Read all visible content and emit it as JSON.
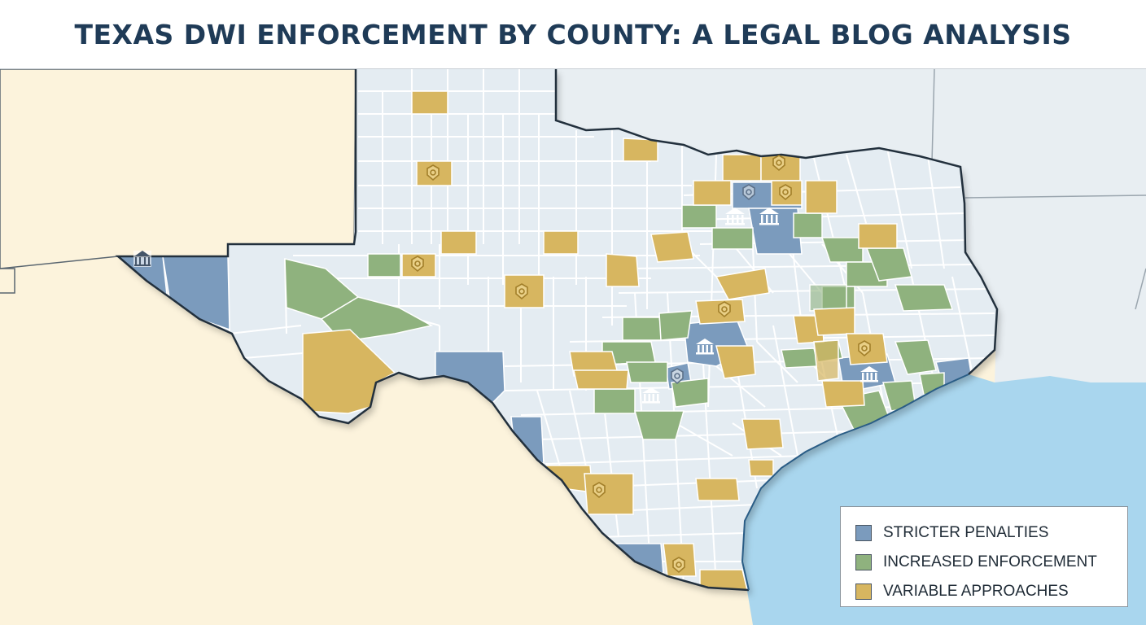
{
  "title": "TEXAS DWI ENFORCEMENT BY COUNTY: A LEGAL BLOG ANALYSIS",
  "colors": {
    "background_land": "#fcf3dc",
    "neighbor_land": "#e8eef2",
    "gulf_water": "#a9d6ee",
    "county_default": "#e4ecf2",
    "county_border": "#ffffff",
    "state_outline": "#22303d",
    "stricter": "#7b9bbd",
    "increased": "#8fb27e",
    "variable": "#d7b660"
  },
  "legend": {
    "items": [
      {
        "label": "STRICTER PENALTIES",
        "color": "#7b9bbd"
      },
      {
        "label": "INCREASED ENFORCEMENT",
        "color": "#8fb27e"
      },
      {
        "label": "VARIABLE APPROACHES",
        "color": "#d7b660"
      }
    ]
  },
  "map_icons": {
    "badge_icon": "police-badge-icon",
    "courthouse_icon": "courthouse-icon"
  }
}
